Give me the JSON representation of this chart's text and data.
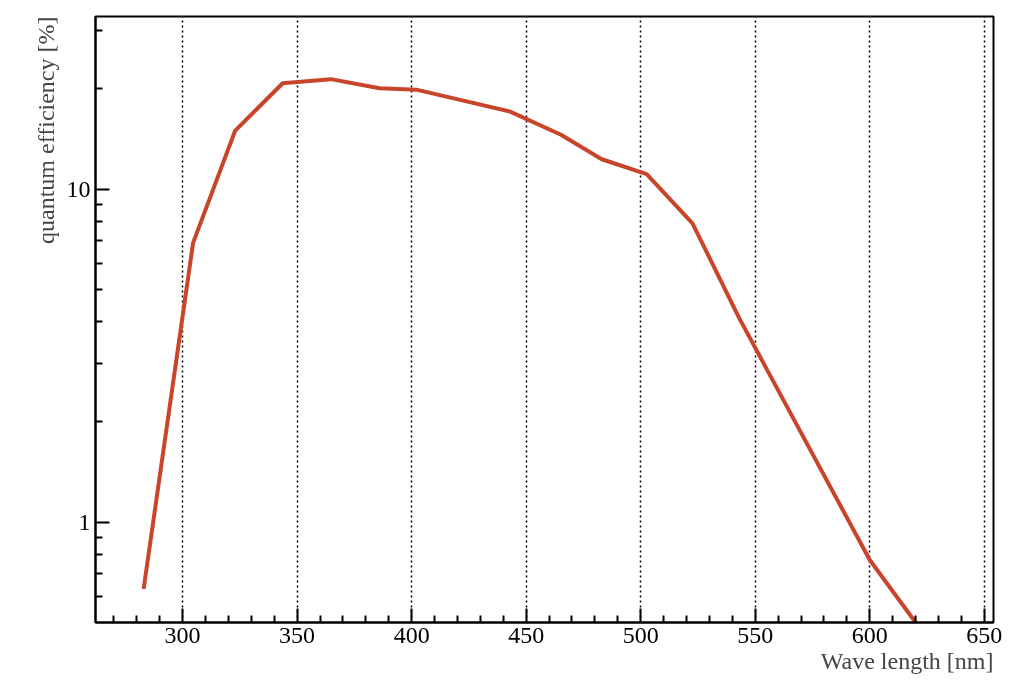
{
  "chart_data": {
    "type": "line",
    "xlabel": "Wave length [nm]",
    "ylabel": "quantum efficiency [%]",
    "x": [
      283,
      304.6,
      323,
      343.7,
      364.7,
      386,
      402,
      443,
      465,
      483,
      502.6,
      522.6,
      543,
      600,
      620
    ],
    "series": [
      {
        "color": "#c8442a",
        "values": [
          0.63,
          6.9,
          15.0,
          20.8,
          21.4,
          20.1,
          19.9,
          17.1,
          14.6,
          12.3,
          11.1,
          7.9,
          4.1,
          0.77,
          0.5
        ]
      }
    ],
    "xlim": [
      262,
      654
    ],
    "ylim": [
      0.5,
      33
    ],
    "log": "y",
    "grid": "x",
    "marker": "none",
    "line_style": "solid",
    "xticks": [
      300,
      350,
      400,
      450,
      500,
      550,
      600,
      650,
      {
        "value": 270,
        "label": null
      },
      {
        "value": 280,
        "label": null
      },
      {
        "value": 290,
        "label": null
      },
      {
        "value": 310,
        "label": null
      },
      {
        "value": 320,
        "label": null
      },
      {
        "value": 330,
        "label": null
      },
      {
        "value": 340,
        "label": null
      },
      {
        "value": 360,
        "label": null
      },
      {
        "value": 370,
        "label": null
      },
      {
        "value": 380,
        "label": null
      },
      {
        "value": 390,
        "label": null
      },
      {
        "value": 410,
        "label": null
      },
      {
        "value": 420,
        "label": null
      },
      {
        "value": 430,
        "label": null
      },
      {
        "value": 440,
        "label": null
      },
      {
        "value": 460,
        "label": null
      },
      {
        "value": 470,
        "label": null
      },
      {
        "value": 480,
        "label": null
      },
      {
        "value": 490,
        "label": null
      },
      {
        "value": 510,
        "label": null
      },
      {
        "value": 520,
        "label": null
      },
      {
        "value": 530,
        "label": null
      },
      {
        "value": 540,
        "label": null
      },
      {
        "value": 560,
        "label": null
      },
      {
        "value": 570,
        "label": null
      },
      {
        "value": 580,
        "label": null
      },
      {
        "value": 590,
        "label": null
      },
      {
        "value": 610,
        "label": null
      },
      {
        "value": 620,
        "label": null
      },
      {
        "value": 630,
        "label": null
      },
      {
        "value": 640,
        "label": null
      }
    ],
    "yticks": [
      1,
      10,
      {
        "value": 0.6,
        "label": null
      },
      {
        "value": 0.7,
        "label": null
      },
      {
        "value": 0.8,
        "label": null
      },
      {
        "value": 0.9,
        "label": null
      },
      {
        "value": 2,
        "label": null
      },
      {
        "value": 3,
        "label": null
      },
      {
        "value": 4,
        "label": null
      },
      {
        "value": 5,
        "label": null
      },
      {
        "value": 6,
        "label": null
      },
      {
        "value": 7,
        "label": null
      },
      {
        "value": 8,
        "label": null
      },
      {
        "value": 9,
        "label": null
      },
      {
        "value": 20,
        "label": null
      },
      {
        "value": 30,
        "label": null
      }
    ]
  }
}
